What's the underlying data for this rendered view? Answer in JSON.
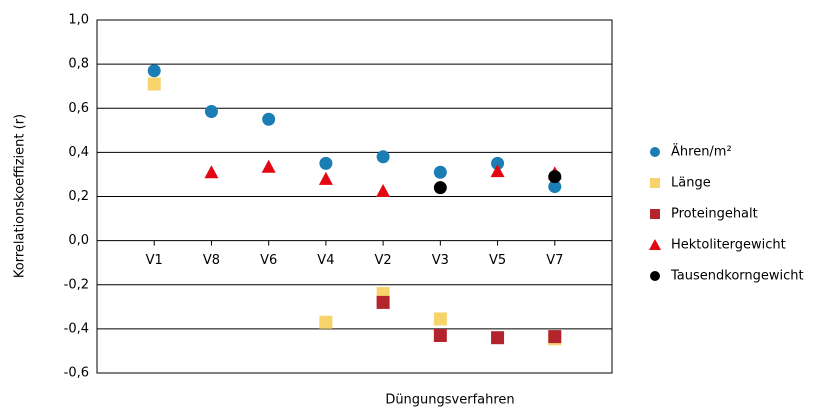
{
  "chart_data": {
    "type": "scatter",
    "x_label": "Düngungsverfahren",
    "y_label": "Korrelationskoeffizient (r)",
    "categories": [
      "V1",
      "V8",
      "V6",
      "V4",
      "V2",
      "V3",
      "V5",
      "V7"
    ],
    "ylim": [
      -0.6,
      1.0
    ],
    "yticks": [
      {
        "value": 1.0,
        "label": "1,0"
      },
      {
        "value": 0.8,
        "label": "0,8"
      },
      {
        "value": 0.6,
        "label": "0,6"
      },
      {
        "value": 0.4,
        "label": "0,4"
      },
      {
        "value": 0.2,
        "label": "0,2"
      },
      {
        "value": 0.0,
        "label": "0,0"
      },
      {
        "value": -0.2,
        "label": "-0,2"
      },
      {
        "value": -0.4,
        "label": "-0,4"
      },
      {
        "value": -0.6,
        "label": "-0,6"
      }
    ],
    "grid": true,
    "legend": "right",
    "series": [
      {
        "name": "Ähren/m²",
        "color": "#1a7db3",
        "marker": "circle",
        "values": [
          0.77,
          0.585,
          0.55,
          0.35,
          0.38,
          0.31,
          0.35,
          0.245
        ]
      },
      {
        "name": "Länge",
        "color": "#f6d36b",
        "marker": "square",
        "values": [
          0.71,
          null,
          null,
          -0.37,
          -0.24,
          -0.355,
          null,
          -0.445
        ]
      },
      {
        "name": "Proteingehalt",
        "color": "#b3242c",
        "marker": "square",
        "values": [
          null,
          null,
          null,
          null,
          -0.28,
          -0.43,
          -0.44,
          -0.435
        ]
      },
      {
        "name": "Hektolitergewicht",
        "color": "#e30613",
        "marker": "triangle",
        "values": [
          null,
          0.31,
          0.335,
          0.28,
          0.225,
          null,
          0.315,
          0.305
        ]
      },
      {
        "name": "Tausendkorngewicht",
        "color": "#000000",
        "marker": "circle",
        "values": [
          null,
          null,
          null,
          null,
          null,
          0.24,
          null,
          0.29
        ]
      }
    ]
  }
}
